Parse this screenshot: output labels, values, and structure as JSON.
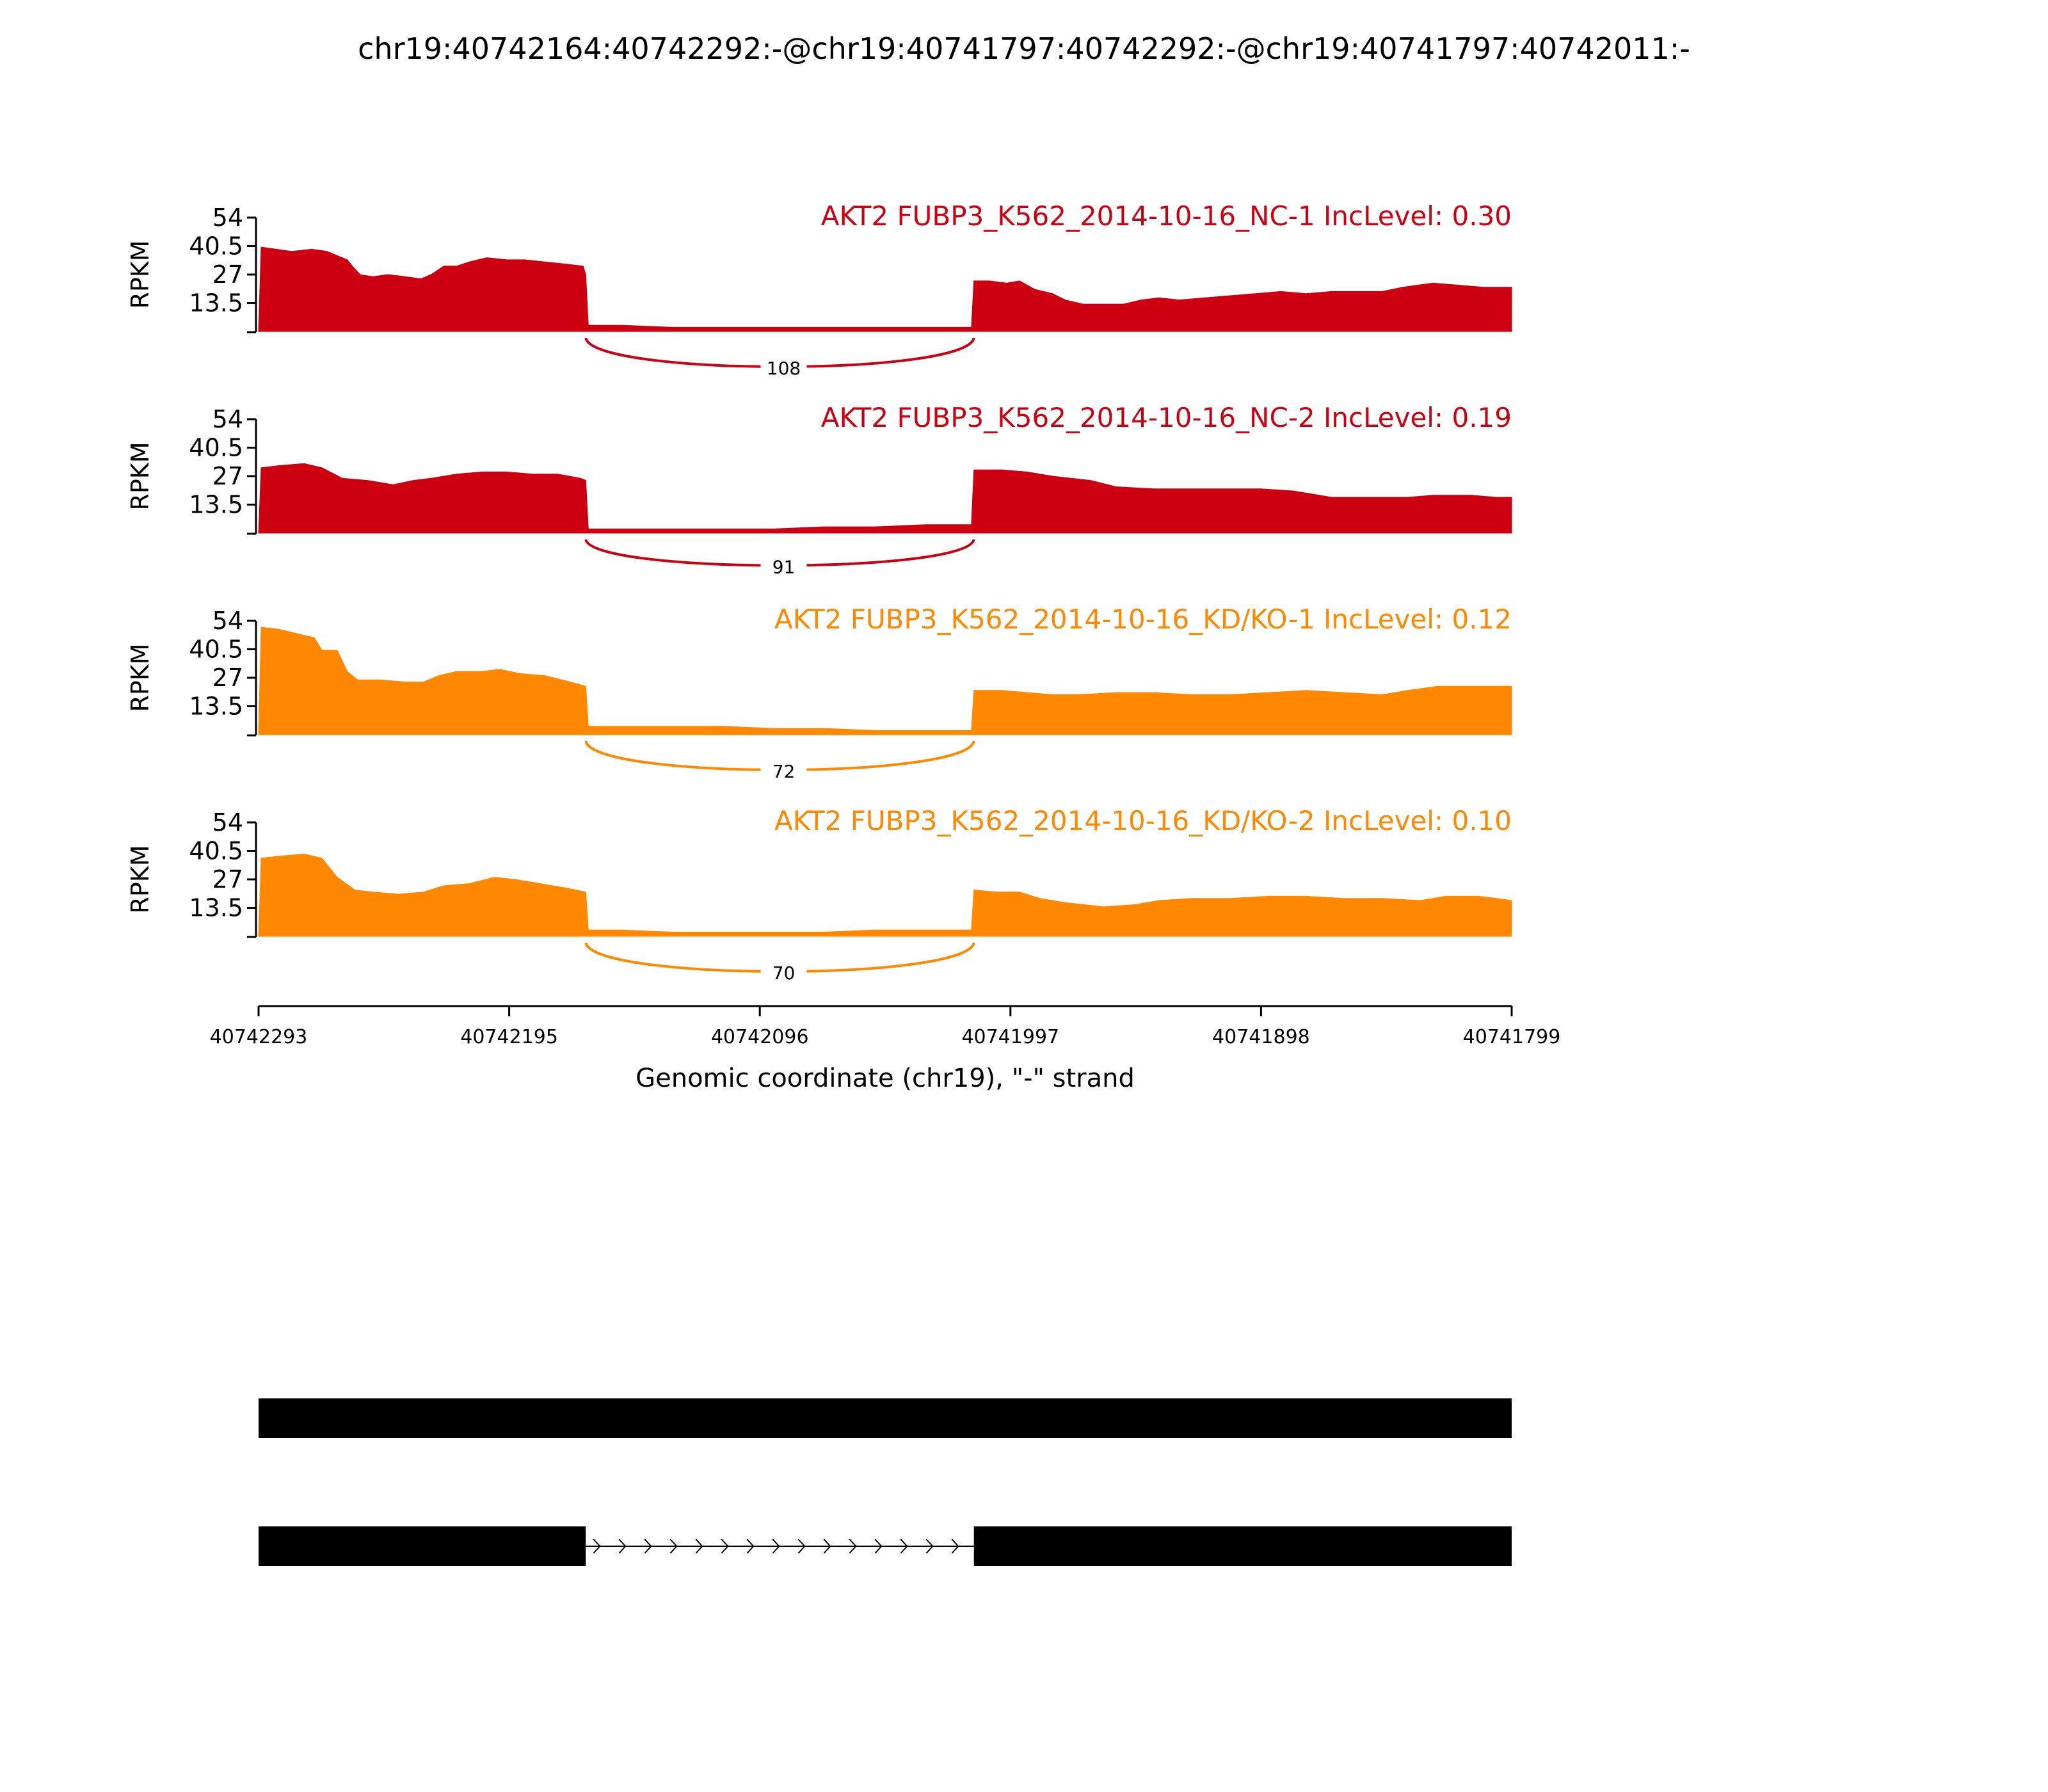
{
  "figure": {
    "title": "chr19:40742164:40742292:-@chr19:40741797:40742292:-@chr19:40741797:40742011:-"
  },
  "colors": {
    "nc": "#cc0011",
    "kd": "#ff8800",
    "black": "#000000"
  },
  "chart_data": {
    "type": "area",
    "ylabel": "RPKM",
    "yticks": [
      13.5,
      27,
      40.5,
      54
    ],
    "ylim": [
      0,
      54
    ],
    "xlabel": "Genomic coordinate (chr19), \"-\" strand",
    "xticks": [
      "40742293",
      "40742195",
      "40742096",
      "40741997",
      "40741898",
      "40741799"
    ],
    "xrange": [
      40742293,
      40741799
    ],
    "series": [
      {
        "name": "AKT2 FUBP3_K562_2014-10-16_NC-1 IncLevel: 0.30",
        "group": "nc",
        "junction": 108,
        "coverage": [
          [
            40742293,
            0
          ],
          [
            40742292,
            40
          ],
          [
            40742286,
            39
          ],
          [
            40742280,
            38
          ],
          [
            40742272,
            39
          ],
          [
            40742266,
            38
          ],
          [
            40742262,
            36
          ],
          [
            40742258,
            34
          ],
          [
            40742256,
            31
          ],
          [
            40742253,
            27
          ],
          [
            40742248,
            26
          ],
          [
            40742242,
            27
          ],
          [
            40742235,
            26
          ],
          [
            40742229,
            25
          ],
          [
            40742225,
            27
          ],
          [
            40742220,
            31
          ],
          [
            40742215,
            31
          ],
          [
            40742210,
            33
          ],
          [
            40742203,
            35
          ],
          [
            40742195,
            34
          ],
          [
            40742188,
            34
          ],
          [
            40742180,
            33
          ],
          [
            40742172,
            32
          ],
          [
            40742165,
            31
          ],
          [
            40742164,
            27
          ],
          [
            40742163,
            3
          ],
          [
            40742150,
            3
          ],
          [
            40742130,
            2
          ],
          [
            40742110,
            2
          ],
          [
            40742090,
            2
          ],
          [
            40742060,
            2
          ],
          [
            40742030,
            2
          ],
          [
            40742012,
            2
          ],
          [
            40742011,
            24
          ],
          [
            40742005,
            24
          ],
          [
            40741998,
            23
          ],
          [
            40741993,
            24
          ],
          [
            40741987,
            20
          ],
          [
            40741980,
            18
          ],
          [
            40741975,
            15
          ],
          [
            40741968,
            13
          ],
          [
            40741960,
            13
          ],
          [
            40741952,
            13
          ],
          [
            40741945,
            15
          ],
          [
            40741938,
            16
          ],
          [
            40741930,
            15
          ],
          [
            40741920,
            16
          ],
          [
            40741910,
            17
          ],
          [
            40741900,
            18
          ],
          [
            40741890,
            19
          ],
          [
            40741880,
            18
          ],
          [
            40741870,
            19
          ],
          [
            40741860,
            19
          ],
          [
            40741850,
            19
          ],
          [
            40741842,
            21
          ],
          [
            40741830,
            23
          ],
          [
            40741820,
            22
          ],
          [
            40741810,
            21
          ],
          [
            40741800,
            21
          ],
          [
            40741799,
            21
          ]
        ]
      },
      {
        "name": "AKT2 FUBP3_K562_2014-10-16_NC-2 IncLevel: 0.19",
        "group": "nc",
        "junction": 91,
        "coverage": [
          [
            40742293,
            0
          ],
          [
            40742292,
            31
          ],
          [
            40742285,
            32
          ],
          [
            40742275,
            33
          ],
          [
            40742268,
            31
          ],
          [
            40742260,
            26
          ],
          [
            40742250,
            25
          ],
          [
            40742240,
            23
          ],
          [
            40742232,
            25
          ],
          [
            40742225,
            26
          ],
          [
            40742215,
            28
          ],
          [
            40742205,
            29
          ],
          [
            40742195,
            29
          ],
          [
            40742185,
            28
          ],
          [
            40742175,
            28
          ],
          [
            40742166,
            26
          ],
          [
            40742164,
            25
          ],
          [
            40742163,
            2
          ],
          [
            40742150,
            2
          ],
          [
            40742130,
            2
          ],
          [
            40742110,
            2
          ],
          [
            40742090,
            2
          ],
          [
            40742070,
            3
          ],
          [
            40742050,
            3
          ],
          [
            40742030,
            4
          ],
          [
            40742012,
            4
          ],
          [
            40742011,
            30
          ],
          [
            40742000,
            30
          ],
          [
            40741990,
            29
          ],
          [
            40741980,
            27
          ],
          [
            40741965,
            25
          ],
          [
            40741955,
            22
          ],
          [
            40741940,
            21
          ],
          [
            40741925,
            21
          ],
          [
            40741910,
            21
          ],
          [
            40741898,
            21
          ],
          [
            40741885,
            20
          ],
          [
            40741870,
            17
          ],
          [
            40741855,
            17
          ],
          [
            40741840,
            17
          ],
          [
            40741830,
            18
          ],
          [
            40741815,
            18
          ],
          [
            40741805,
            17
          ],
          [
            40741799,
            17
          ]
        ]
      },
      {
        "name": "AKT2 FUBP3_K562_2014-10-16_KD/KO-1 IncLevel: 0.12",
        "group": "kd",
        "junction": 72,
        "coverage": [
          [
            40742293,
            0
          ],
          [
            40742292,
            51
          ],
          [
            40742285,
            50
          ],
          [
            40742278,
            48
          ],
          [
            40742271,
            46
          ],
          [
            40742268,
            40
          ],
          [
            40742262,
            40
          ],
          [
            40742258,
            30
          ],
          [
            40742254,
            26
          ],
          [
            40742245,
            26
          ],
          [
            40742235,
            25
          ],
          [
            40742228,
            25
          ],
          [
            40742222,
            28
          ],
          [
            40742215,
            30
          ],
          [
            40742205,
            30
          ],
          [
            40742198,
            31
          ],
          [
            40742190,
            29
          ],
          [
            40742180,
            28
          ],
          [
            40742170,
            25
          ],
          [
            40742164,
            23
          ],
          [
            40742163,
            4
          ],
          [
            40742150,
            4
          ],
          [
            40742130,
            4
          ],
          [
            40742110,
            4
          ],
          [
            40742090,
            3
          ],
          [
            40742070,
            3
          ],
          [
            40742050,
            2
          ],
          [
            40742030,
            2
          ],
          [
            40742012,
            2
          ],
          [
            40742011,
            21
          ],
          [
            40742000,
            21
          ],
          [
            40741990,
            20
          ],
          [
            40741980,
            19
          ],
          [
            40741970,
            19
          ],
          [
            40741955,
            20
          ],
          [
            40741940,
            20
          ],
          [
            40741925,
            19
          ],
          [
            40741910,
            19
          ],
          [
            40741895,
            20
          ],
          [
            40741880,
            21
          ],
          [
            40741865,
            20
          ],
          [
            40741850,
            19
          ],
          [
            40741840,
            21
          ],
          [
            40741828,
            23
          ],
          [
            40741815,
            23
          ],
          [
            40741805,
            23
          ],
          [
            40741799,
            23
          ]
        ]
      },
      {
        "name": "AKT2 FUBP3_K562_2014-10-16_KD/KO-2 IncLevel: 0.10",
        "group": "kd",
        "junction": 70,
        "coverage": [
          [
            40742293,
            0
          ],
          [
            40742292,
            37
          ],
          [
            40742285,
            38
          ],
          [
            40742275,
            39
          ],
          [
            40742268,
            37
          ],
          [
            40742262,
            28
          ],
          [
            40742255,
            22
          ],
          [
            40742248,
            21
          ],
          [
            40742238,
            20
          ],
          [
            40742228,
            21
          ],
          [
            40742220,
            24
          ],
          [
            40742210,
            25
          ],
          [
            40742200,
            28
          ],
          [
            40742192,
            27
          ],
          [
            40742182,
            25
          ],
          [
            40742172,
            23
          ],
          [
            40742164,
            21
          ],
          [
            40742163,
            3
          ],
          [
            40742150,
            3
          ],
          [
            40742130,
            2
          ],
          [
            40742110,
            2
          ],
          [
            40742090,
            2
          ],
          [
            40742070,
            2
          ],
          [
            40742050,
            3
          ],
          [
            40742030,
            3
          ],
          [
            40742012,
            3
          ],
          [
            40742011,
            22
          ],
          [
            40742002,
            21
          ],
          [
            40741993,
            21
          ],
          [
            40741985,
            18
          ],
          [
            40741975,
            16
          ],
          [
            40741960,
            14
          ],
          [
            40741948,
            15
          ],
          [
            40741938,
            17
          ],
          [
            40741925,
            18
          ],
          [
            40741910,
            18
          ],
          [
            40741895,
            19
          ],
          [
            40741880,
            19
          ],
          [
            40741865,
            18
          ],
          [
            40741850,
            18
          ],
          [
            40741835,
            17
          ],
          [
            40741825,
            19
          ],
          [
            40741812,
            19
          ],
          [
            40741805,
            18
          ],
          [
            40741799,
            17
          ]
        ]
      }
    ],
    "isoforms": [
      {
        "exons": [
          [
            40742293,
            40741799
          ]
        ]
      },
      {
        "exons": [
          [
            40742293,
            40742164
          ],
          [
            40742011,
            40741799
          ]
        ]
      }
    ]
  }
}
